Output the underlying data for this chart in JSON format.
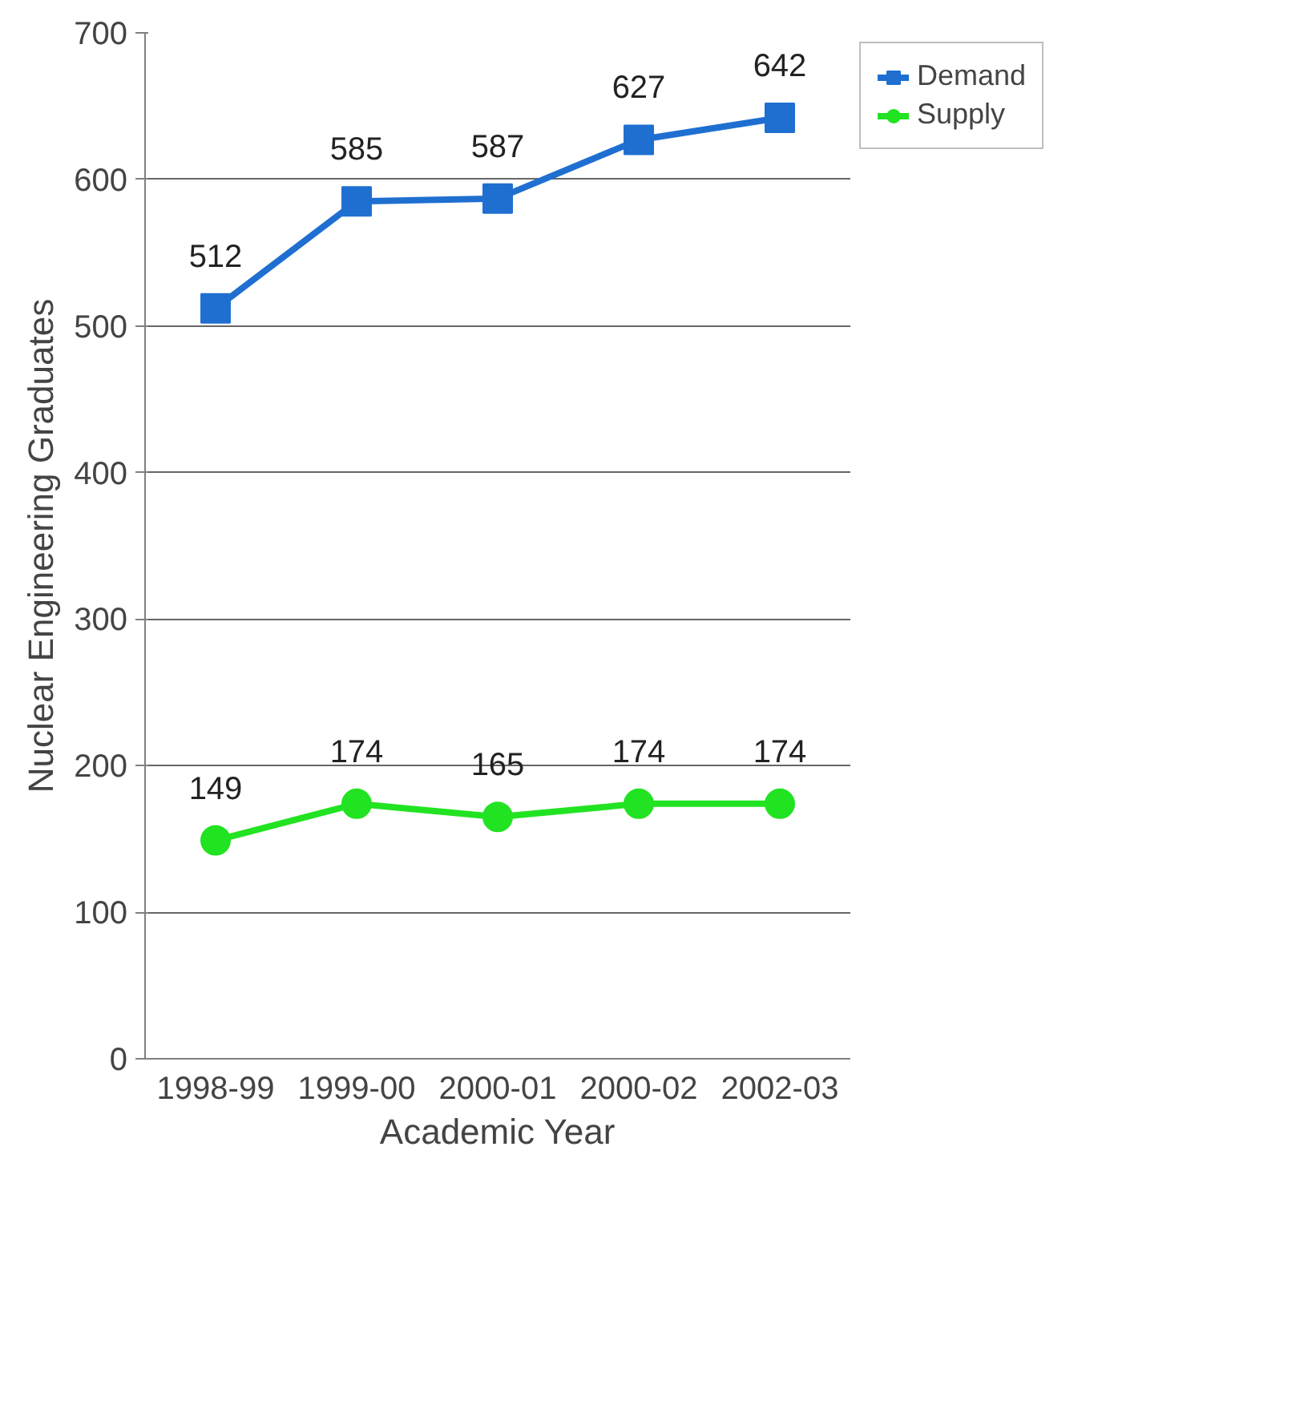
{
  "chart_data": {
    "type": "line",
    "xlabel": "Academic Year",
    "ylabel": "Nuclear Engineering Graduates",
    "categories": [
      "1998-99",
      "1999-00",
      "2000-01",
      "2000-02",
      "2002-03"
    ],
    "series": [
      {
        "name": "Demand",
        "color": "#1f6fd1",
        "marker": "square",
        "values": [
          512,
          585,
          587,
          627,
          642
        ]
      },
      {
        "name": "Supply",
        "color": "#22e322",
        "marker": "circle",
        "values": [
          149,
          174,
          165,
          174,
          174
        ]
      }
    ],
    "ylim": [
      0,
      700
    ],
    "yticks": [
      0,
      100,
      200,
      300,
      400,
      500,
      600,
      700
    ],
    "grid": "y",
    "legend": "top right",
    "data_labels": true
  }
}
